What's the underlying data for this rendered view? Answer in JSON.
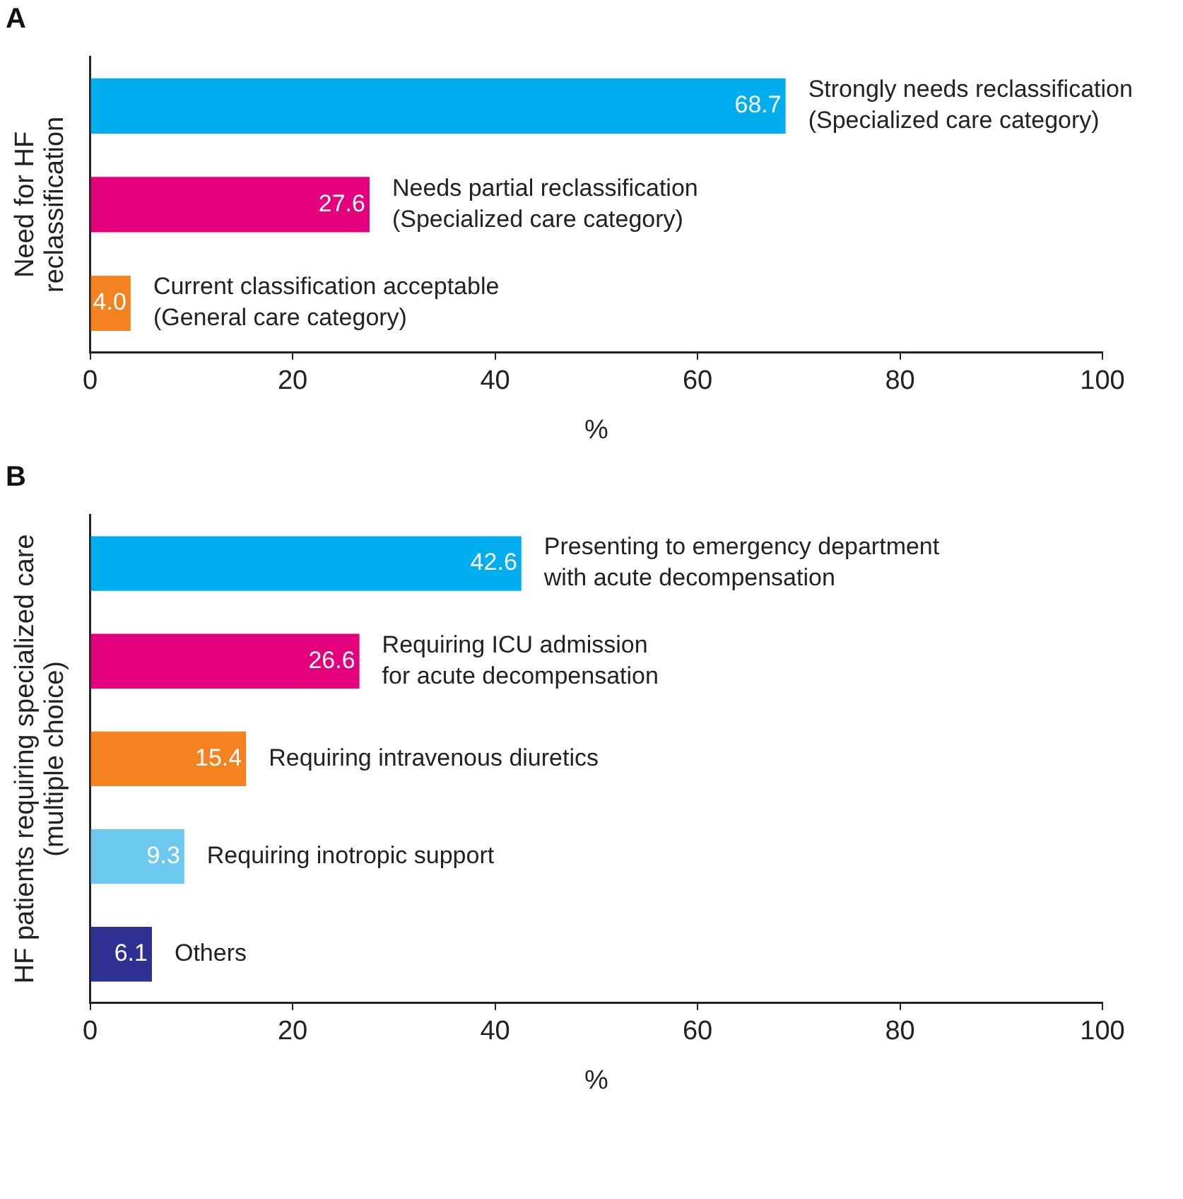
{
  "chart_data": [
    {
      "type": "bar",
      "orientation": "horizontal",
      "title": "A",
      "ylabel": "Need for HF\nreclassification",
      "xlabel": "%",
      "categories": [
        "Strongly needs reclassification\n(Specialized care category)",
        "Needs partial reclassification\n(Specialized care category)",
        "Current classification acceptable\n(General care category)"
      ],
      "values": [
        68.7,
        27.6,
        4.0
      ],
      "value_labels": [
        "68.7",
        "27.6",
        "4.0"
      ],
      "colors": [
        "#00aeef",
        "#e4007c",
        "#f58220"
      ],
      "xlim": [
        0,
        100
      ],
      "xticks": [
        0,
        20,
        40,
        60,
        80,
        100
      ]
    },
    {
      "type": "bar",
      "orientation": "horizontal",
      "title": "B",
      "ylabel": "HF patients requiring specialized care\n(multiple choice)",
      "xlabel": "%",
      "categories": [
        "Presenting to emergency department\nwith acute decompensation",
        "Requiring ICU admission\nfor acute decompensation",
        "Requiring intravenous diuretics",
        "Requiring inotropic support",
        "Others"
      ],
      "values": [
        42.6,
        26.6,
        15.4,
        9.3,
        6.1
      ],
      "value_labels": [
        "42.6",
        "26.6",
        "15.4",
        "9.3",
        "6.1"
      ],
      "colors": [
        "#00aeef",
        "#e4007c",
        "#f58220",
        "#6dc8f0",
        "#2e3192"
      ],
      "xlim": [
        0,
        100
      ],
      "xticks": [
        0,
        20,
        40,
        60,
        80,
        100
      ]
    }
  ]
}
